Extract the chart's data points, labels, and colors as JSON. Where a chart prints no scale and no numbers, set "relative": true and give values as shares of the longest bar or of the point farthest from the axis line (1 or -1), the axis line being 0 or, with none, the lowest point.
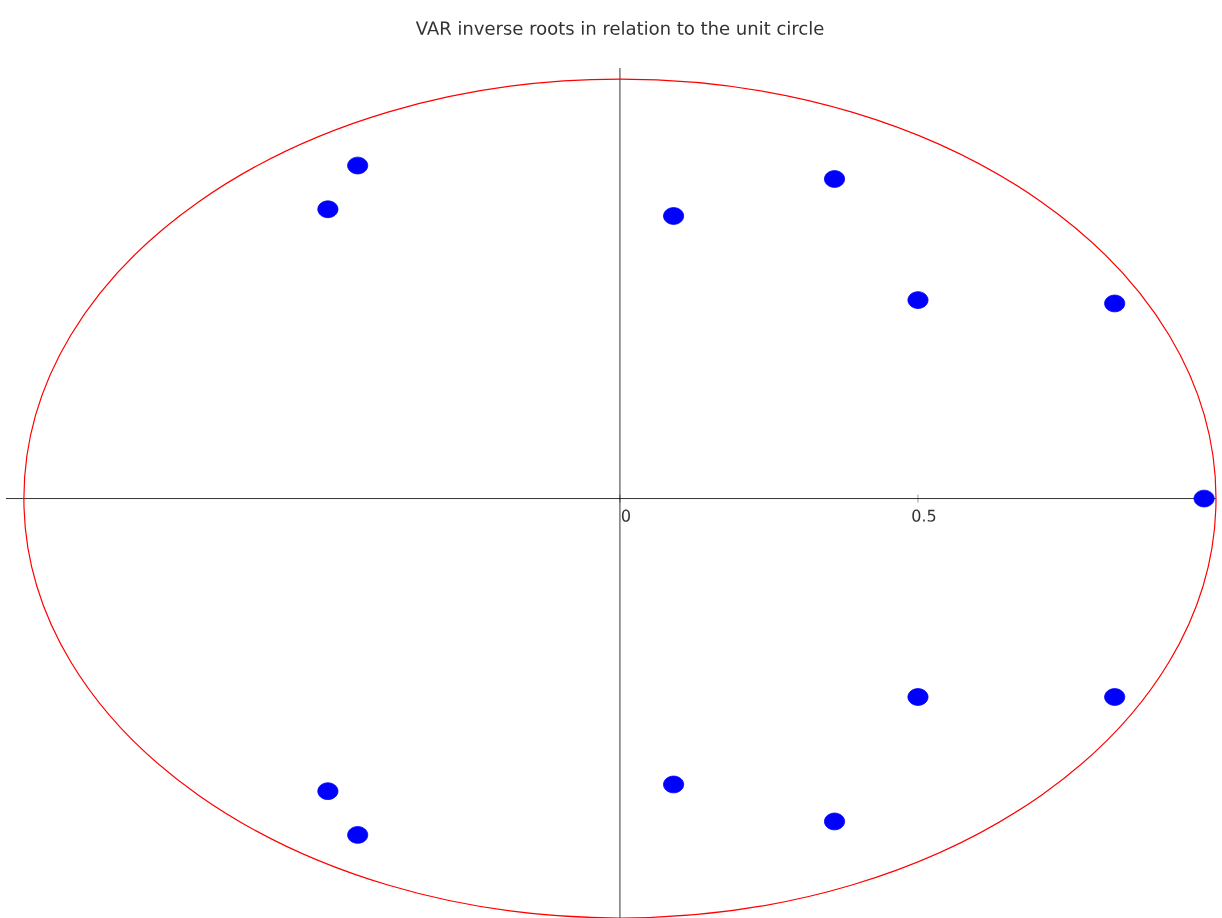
{
  "chart_data": {
    "type": "scatter",
    "title": "VAR inverse roots in relation to the unit circle",
    "xlim": [
      -1.03,
      1.0
    ],
    "relative": true,
    "xticks": [
      0,
      0.5
    ],
    "tick_labels": "x",
    "marker": "circle",
    "series": [
      {
        "color": "#0000ff",
        "x": [
          -0.44,
          -0.49,
          0.09,
          0.36,
          0.5,
          0.83,
          0.98,
          0.5,
          0.83,
          0.09,
          0.36,
          -0.49,
          -0.44
        ],
        "values": [
          0.99,
          0.86,
          0.84,
          0.95,
          0.59,
          0.58,
          0,
          -0.59,
          -0.59,
          -0.85,
          -0.96,
          -0.87,
          -1
        ]
      }
    ]
  }
}
